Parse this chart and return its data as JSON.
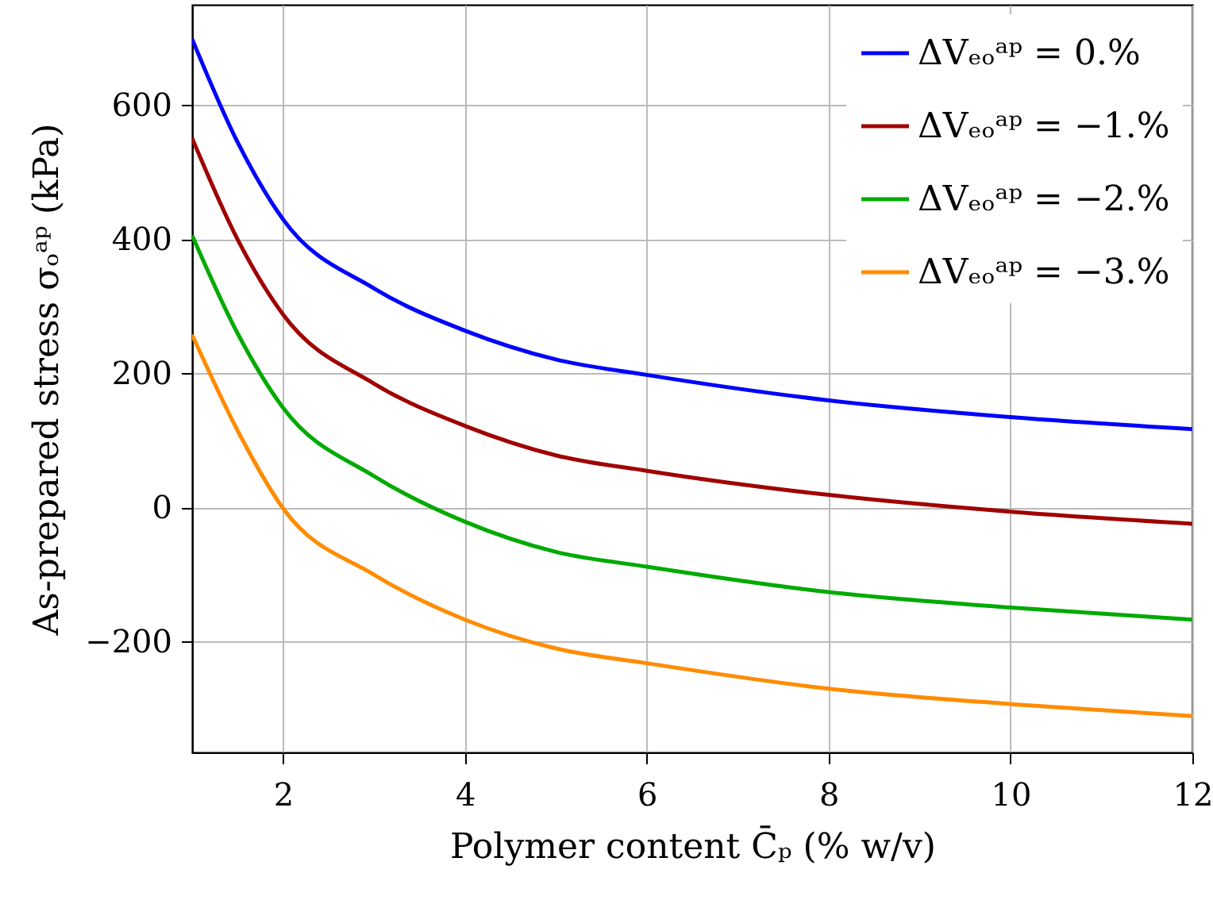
{
  "chart_data": {
    "type": "line",
    "xlabel": "Polymer content  C̄ₚ  (% w/v)",
    "ylabel": "As-prepared stress  σₒᵃᵖ  (kPa)",
    "x": [
      1,
      1.5,
      2,
      3,
      4,
      5,
      6,
      8,
      10,
      12
    ],
    "series": [
      {
        "name": "ΔVₑₒᵃᵖ = 0.%",
        "color": "#0000ff",
        "values": [
          699,
          545,
          430,
          327,
          264,
          221,
          198,
          160,
          135,
          117
        ]
      },
      {
        "name": "ΔVₑₒᵃᵖ = −1.%",
        "color": "#a00000",
        "values": [
          551,
          400,
          288,
          185,
          122,
          78,
          55,
          19,
          -6,
          -24
        ]
      },
      {
        "name": "ΔVₑₒᵃᵖ = −2.%",
        "color": "#00aa00",
        "values": [
          406,
          260,
          149,
          47,
          -21,
          -66,
          -88,
          -126,
          -149,
          -167
        ]
      },
      {
        "name": "ΔVₑₒᵃᵖ = −3.%",
        "color": "#ff8c00",
        "values": [
          258,
          115,
          -1,
          -100,
          -167,
          -210,
          -232,
          -270,
          -293,
          -311
        ]
      }
    ],
    "xlim": [
      1,
      12
    ],
    "xticks": [
      2,
      4,
      6,
      8,
      10,
      12
    ],
    "ylim": [
      -365,
      750
    ],
    "yticks": [
      -200,
      0,
      200,
      400,
      600
    ],
    "grid": true,
    "legend": "top right"
  }
}
